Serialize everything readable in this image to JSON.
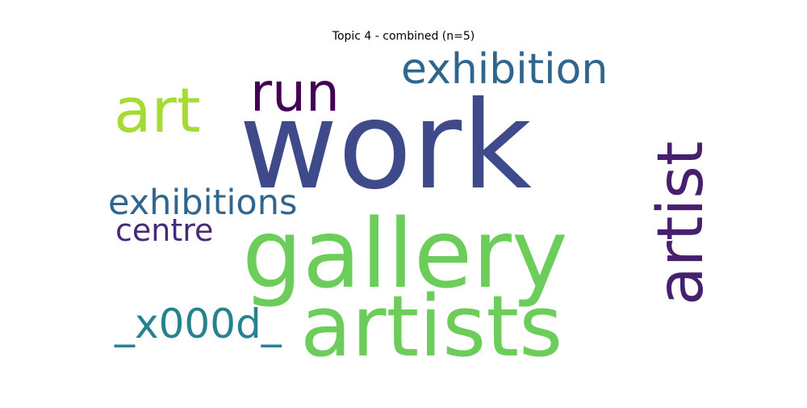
{
  "chart_data": {
    "type": "wordcloud",
    "title": "Topic 4 - combined (n=5)",
    "words": [
      {
        "text": "work",
        "color": "#3e4a89",
        "rotate": 0
      },
      {
        "text": "gallery",
        "color": "#6ccd5a",
        "rotate": 0
      },
      {
        "text": "artists",
        "color": "#6ccd5a",
        "rotate": 0
      },
      {
        "text": "artist",
        "color": "#46206c",
        "rotate": -90
      },
      {
        "text": "art",
        "color": "#a6db35",
        "rotate": 0
      },
      {
        "text": "run",
        "color": "#440154",
        "rotate": 0
      },
      {
        "text": "exhibition",
        "color": "#30668e",
        "rotate": 0
      },
      {
        "text": "exhibitions",
        "color": "#30668e",
        "rotate": 0
      },
      {
        "text": "centre",
        "color": "#482878",
        "rotate": 0
      },
      {
        "text": "_x000d_",
        "color": "#26828e",
        "rotate": 0
      }
    ]
  }
}
